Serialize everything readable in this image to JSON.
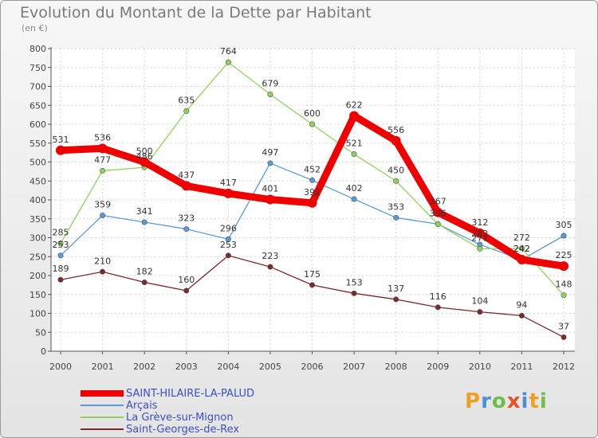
{
  "header": {
    "title": "Evolution du Montant de la Dette par Habitant",
    "subtitle": "(en €)"
  },
  "branding": {
    "text": "Proxiti",
    "letters": [
      {
        "ch": "P",
        "color": "#f0a020"
      },
      {
        "ch": "r",
        "color": "#4a8fd8"
      },
      {
        "ch": "o",
        "color": "#6cc04a"
      },
      {
        "ch": "x",
        "color": "#e8502a"
      },
      {
        "ch": "i",
        "color": "#4a8fd8"
      },
      {
        "ch": "t",
        "color": "#f0a020"
      },
      {
        "ch": "i",
        "color": "#6cc04a"
      }
    ]
  },
  "chart_data": {
    "type": "line",
    "title": "Evolution du Montant de la Dette par Habitant",
    "subtitle": "(en €)",
    "xlabel": "",
    "ylabel": "",
    "ylim": [
      0,
      800
    ],
    "yticks": [
      0,
      50,
      100,
      150,
      200,
      250,
      300,
      350,
      400,
      450,
      500,
      550,
      600,
      650,
      700,
      750,
      800
    ],
    "grid": true,
    "legend_position": "bottom-left",
    "x": [
      "2000",
      "2001",
      "2002",
      "2003",
      "2004",
      "2005",
      "2006",
      "2007",
      "2008",
      "2009",
      "2010",
      "2011",
      "2012"
    ],
    "series": [
      {
        "name": "SAINT-HILAIRE-LA-PALUD",
        "color": "#ee0000",
        "emphasis": true,
        "values": [
          531,
          536,
          500,
          437,
          417,
          401,
          392,
          622,
          556,
          367,
          312,
          242,
          225
        ]
      },
      {
        "name": "Arçais",
        "color": "#5b9ad5",
        "emphasis": false,
        "values": [
          253,
          359,
          341,
          323,
          296,
          497,
          452,
          402,
          353,
          336,
          282,
          242,
          305
        ]
      },
      {
        "name": "La Grève-sur-Mignon",
        "color": "#8fd45a",
        "emphasis": false,
        "values": [
          285,
          477,
          486,
          635,
          764,
          679,
          600,
          521,
          450,
          336,
          271,
          272,
          148
        ]
      },
      {
        "name": "Saint-Georges-de-Rex",
        "color": "#7a2a2a",
        "emphasis": false,
        "values": [
          189,
          210,
          182,
          160,
          253,
          223,
          175,
          153,
          137,
          116,
          104,
          94,
          37
        ]
      }
    ]
  }
}
